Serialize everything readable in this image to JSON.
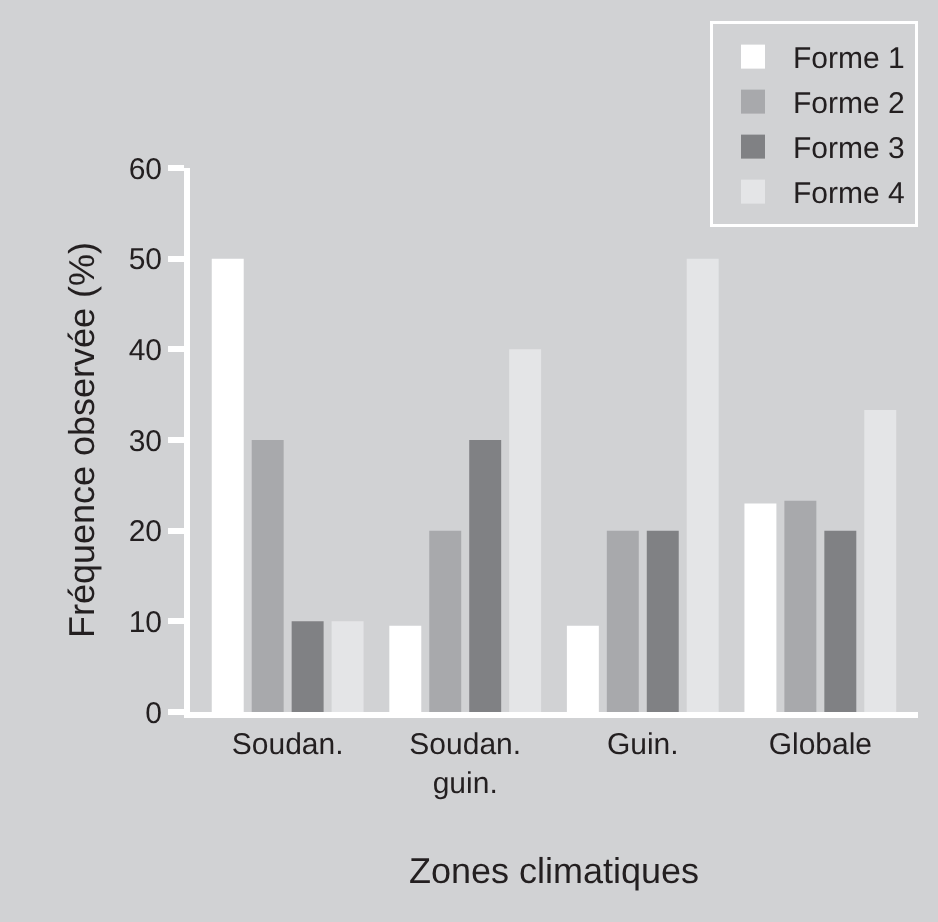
{
  "chart_data": {
    "type": "bar",
    "xlabel": "Zones climatiques",
    "ylabel": "Fréquence observée (%)",
    "categories": [
      "Soudan.",
      "Soudan.\nguin.",
      "Guin.",
      "Globale"
    ],
    "series": [
      {
        "name": "Forme 1",
        "color": "#ffffff",
        "values": [
          50,
          9.5,
          9.5,
          23
        ]
      },
      {
        "name": "Forme 2",
        "color": "#a8a9ac",
        "values": [
          30,
          20,
          20,
          23.3
        ]
      },
      {
        "name": "Forme 3",
        "color": "#808184",
        "values": [
          10,
          30,
          20,
          20
        ]
      },
      {
        "name": "Forme 4",
        "color": "#e4e5e7",
        "values": [
          10,
          40,
          50,
          33.3
        ]
      }
    ],
    "ylim": [
      0,
      60
    ],
    "yticks": [
      0,
      10,
      20,
      30,
      40,
      50,
      60
    ],
    "grid": false,
    "legend": "top right"
  }
}
